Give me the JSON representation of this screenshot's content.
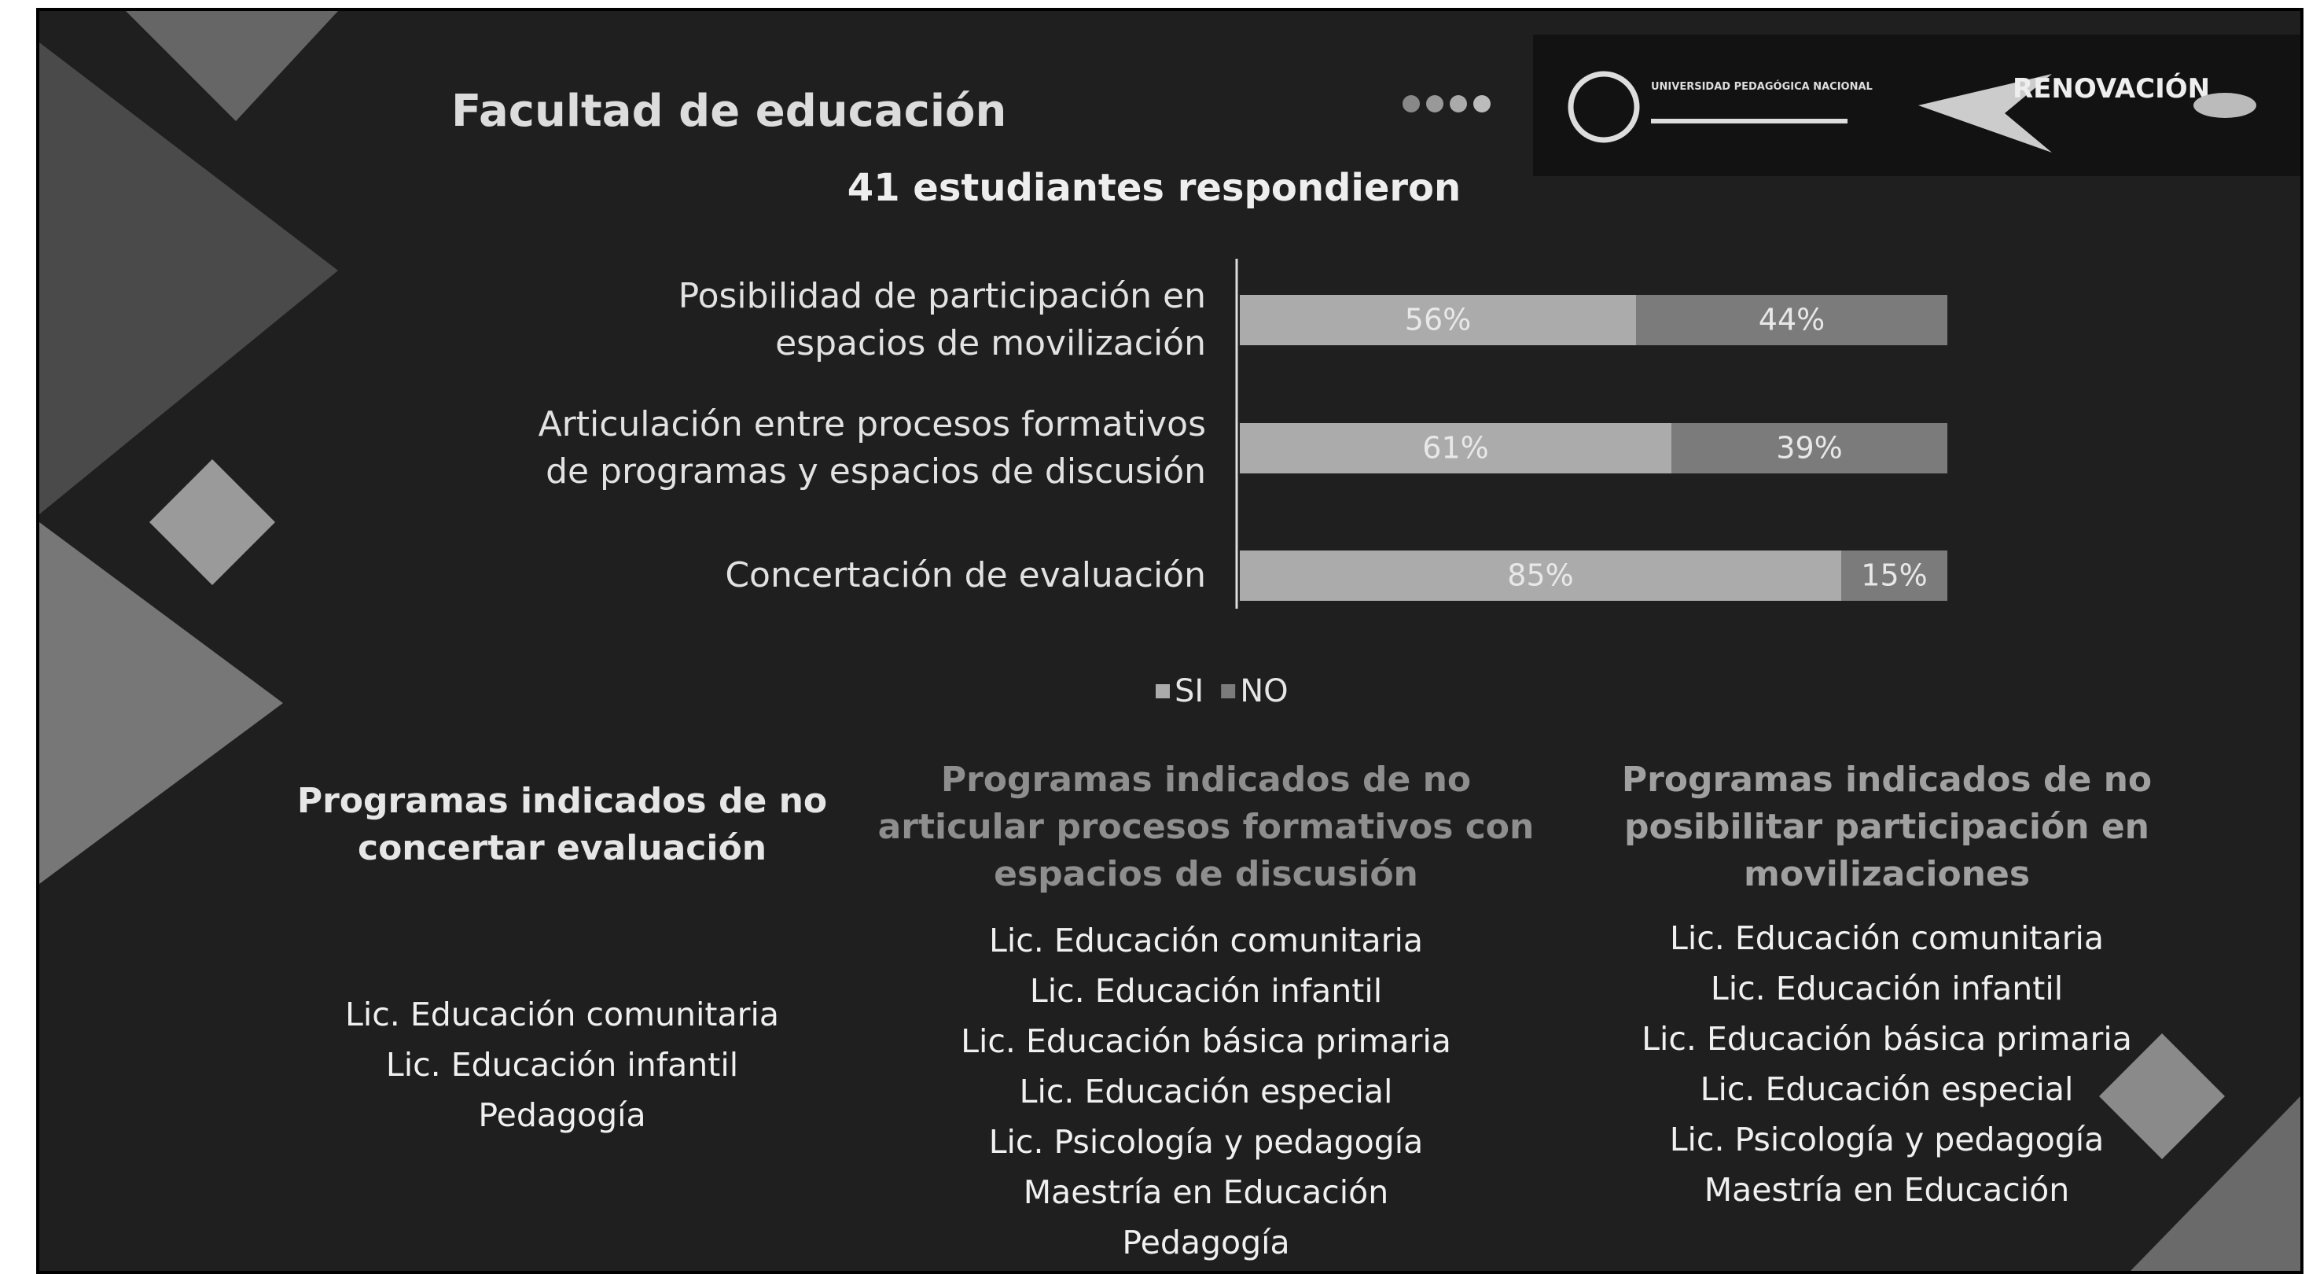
{
  "header": {
    "title": "Facultad de educación",
    "logo_university": "UNIVERSIDAD PEDAGÓGICA NACIONAL",
    "logo_renovacion": "RENOVACIÓN"
  },
  "chart_data": {
    "type": "stacked_barh",
    "title": "41 estudiantes respondieron",
    "categories": [
      "Posibilidad de participación en\nespacios de movilización",
      "Articulación entre procesos formativos\nde programas y espacios de discusión",
      "Concertación de evaluación"
    ],
    "series": [
      {
        "name": "SI",
        "color": "#ababab",
        "values": [
          56,
          61,
          85
        ],
        "value_labels": [
          "56%",
          "61%",
          "85%"
        ]
      },
      {
        "name": "NO",
        "color": "#7b7b7b",
        "values": [
          44,
          39,
          15
        ],
        "value_labels": [
          "44%",
          "39%",
          "15%"
        ]
      }
    ],
    "legend": "bottom"
  },
  "columns": [
    {
      "heading": "Programas indicados de no\nconcertar evaluación",
      "items": [
        "Lic. Educación comunitaria",
        "Lic. Educación infantil",
        "Pedagogía"
      ]
    },
    {
      "heading": "Programas indicados de no\narticular procesos formativos con\nespacios de discusión",
      "items": [
        "Lic. Educación comunitaria",
        "Lic. Educación infantil",
        "Lic. Educación básica primaria",
        "Lic. Educación especial",
        "Lic. Psicología y pedagogía",
        "Maestría en Educación",
        "Pedagogía"
      ]
    },
    {
      "heading": "Programas indicados de no\nposibilitar participación en\nmovilizaciones",
      "items": [
        "Lic. Educación comunitaria",
        "Lic. Educación infantil",
        "Lic. Educación básica primaria",
        "Lic. Educación especial",
        "Lic. Psicología y pedagogía",
        "Maestría en Educación"
      ]
    }
  ]
}
